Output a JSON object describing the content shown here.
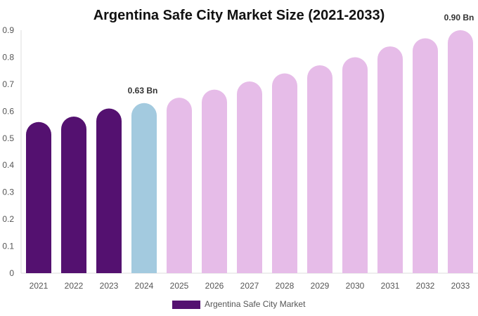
{
  "chart_data": {
    "type": "bar",
    "title": "Argentina Safe City Market Size (2021-2033)",
    "xlabel": "",
    "ylabel": "",
    "ylim": [
      0,
      0.9
    ],
    "yticks": [
      "0",
      "0.1",
      "0.2",
      "0.3",
      "0.4",
      "0.5",
      "0.6",
      "0.7",
      "0.8",
      "0.9"
    ],
    "grid": false,
    "legend_position": "bottom",
    "categories": [
      "2021",
      "2022",
      "2023",
      "2024",
      "2025",
      "2026",
      "2027",
      "2028",
      "2029",
      "2030",
      "2031",
      "2032",
      "2033"
    ],
    "series": [
      {
        "name": "Argentina Safe City Market",
        "values": [
          0.56,
          0.58,
          0.61,
          0.63,
          0.65,
          0.68,
          0.71,
          0.74,
          0.77,
          0.8,
          0.84,
          0.87,
          0.9
        ]
      }
    ],
    "bar_colors": [
      "#541170",
      "#541170",
      "#541170",
      "#a3cadf",
      "#e6bce8",
      "#e6bce8",
      "#e6bce8",
      "#e6bce8",
      "#e6bce8",
      "#e6bce8",
      "#e6bce8",
      "#e6bce8",
      "#e6bce8"
    ],
    "data_labels": [
      {
        "category": "2024",
        "text": "0.63 Bn"
      },
      {
        "category": "2033",
        "text": "0.90 Bn"
      }
    ],
    "legend_color": "#541170"
  }
}
